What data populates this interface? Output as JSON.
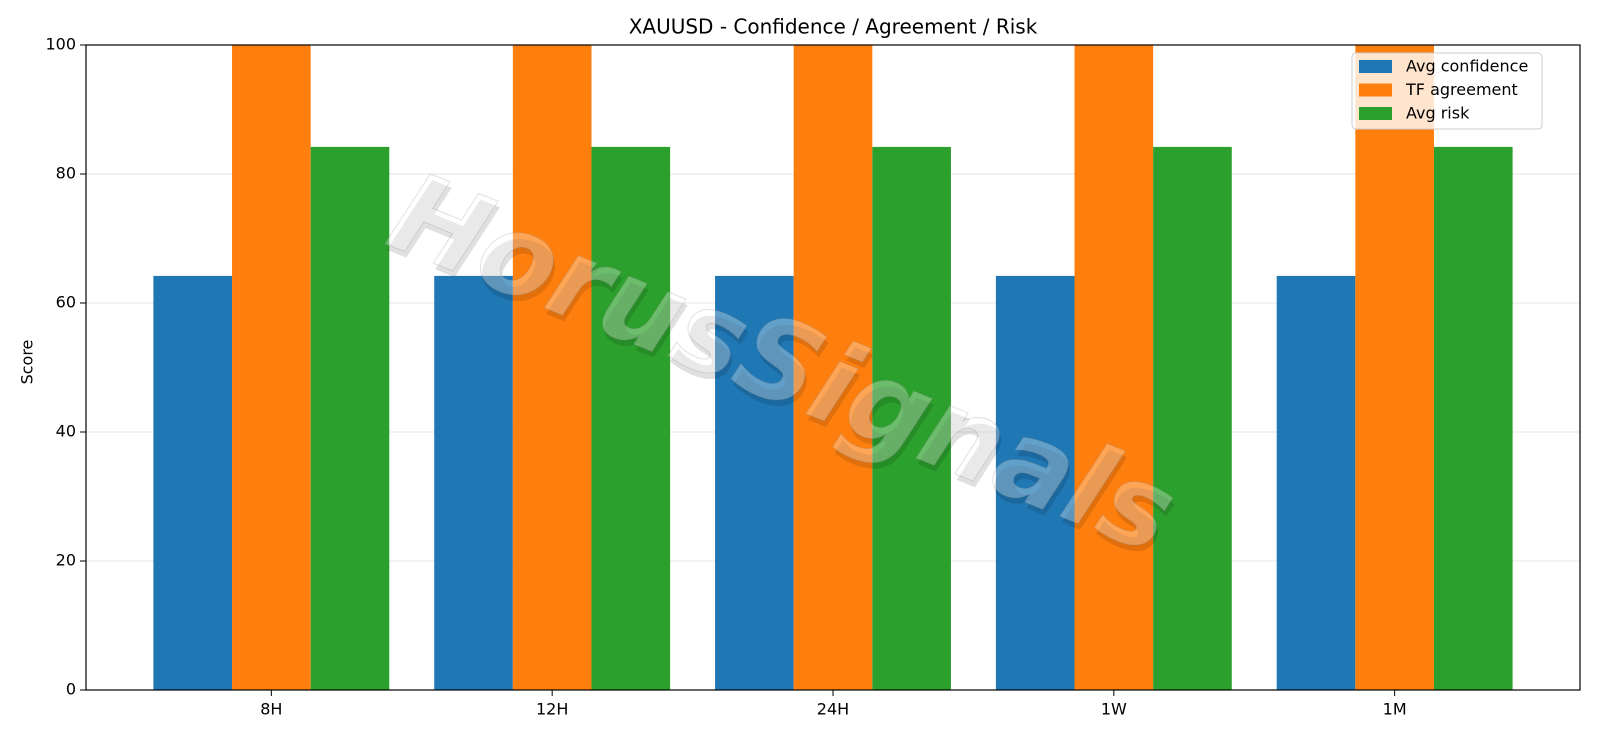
{
  "chart_data": {
    "type": "bar",
    "title": "XAUUSD - Confidence / Agreement / Risk",
    "ylabel": "Score",
    "categories": [
      "8H",
      "12H",
      "24H",
      "1W",
      "1M"
    ],
    "series": [
      {
        "name": "Avg confidence",
        "color": "#1f77b4",
        "values": [
          64.2,
          64.2,
          64.2,
          64.2,
          64.2
        ]
      },
      {
        "name": "TF agreement",
        "color": "#ff7f0e",
        "values": [
          100,
          100,
          100,
          100,
          100
        ]
      },
      {
        "name": "Avg risk",
        "color": "#2ca02c",
        "values": [
          84.2,
          84.2,
          84.2,
          84.2,
          84.2
        ]
      }
    ],
    "ylim": [
      0,
      100
    ],
    "yticks": [
      0,
      20,
      40,
      60,
      80,
      100
    ],
    "grid": true,
    "legend": "upper right",
    "watermark": "HorusSignals"
  }
}
